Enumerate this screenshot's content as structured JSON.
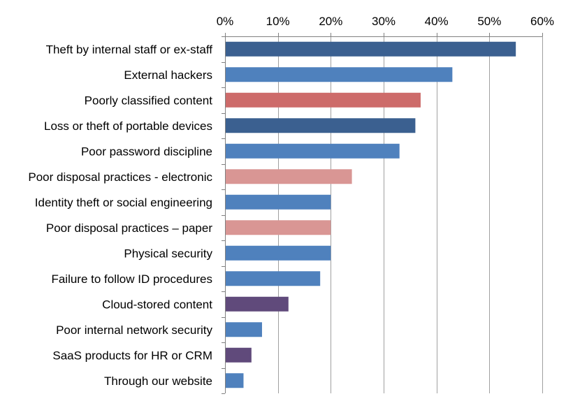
{
  "chart_data": {
    "type": "bar",
    "orientation": "horizontal",
    "title": "",
    "xlabel": "",
    "ylabel": "",
    "xlim": [
      0,
      60
    ],
    "x_ticks": [
      0,
      10,
      20,
      30,
      40,
      50,
      60
    ],
    "x_tick_labels": [
      "0%",
      "10%",
      "20%",
      "30%",
      "40%",
      "50%",
      "60%"
    ],
    "x_axis_position": "top",
    "grid": "vertical",
    "legend": "none",
    "categories": [
      "Theft by internal staff or ex-staff",
      "External hackers",
      "Poorly classified content",
      "Loss or theft of portable devices",
      "Poor password discipline",
      "Poor disposal practices - electronic",
      "Identity theft or social engineering",
      "Poor disposal practices – paper",
      "Physical security",
      "Failure to follow ID procedures",
      "Cloud-stored content",
      "Poor internal network security",
      "SaaS products for HR or CRM",
      "Through our website"
    ],
    "values": [
      55,
      43,
      37,
      36,
      33,
      24,
      20,
      20,
      20,
      18,
      12,
      7,
      5,
      3.5
    ],
    "colors": [
      "#3B6090",
      "#4F81BD",
      "#CD6B6A",
      "#3B6090",
      "#4F81BD",
      "#D99694",
      "#4F81BD",
      "#D99694",
      "#4F81BD",
      "#4F81BD",
      "#604A7B",
      "#4F81BD",
      "#604A7B",
      "#4F81BD"
    ],
    "gridline_color": "#A0A0A0",
    "axis_color": "#808080"
  }
}
